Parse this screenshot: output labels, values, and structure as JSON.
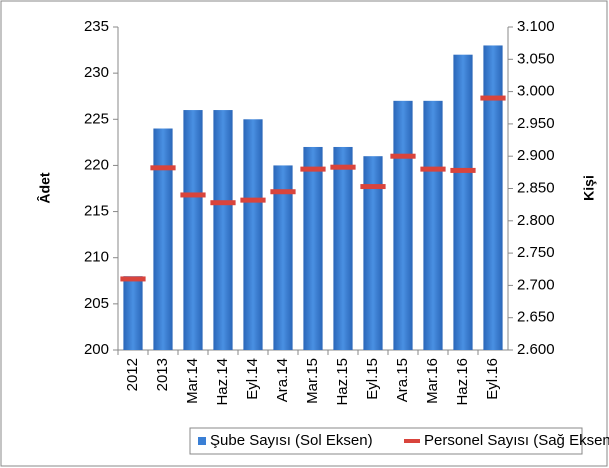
{
  "chart_data": {
    "type": "bar_dash",
    "categories": [
      "2012",
      "2013",
      "Mar.14",
      "Haz.14",
      "Eyl.14",
      "Ara.14",
      "Mar.15",
      "Haz.15",
      "Eyl.15",
      "Ara.15",
      "Mar.16",
      "Haz.16",
      "Eyl.16"
    ],
    "series": [
      {
        "name": "Şube Sayısı (Sol Eksen)",
        "color": "#3a7fd5",
        "values": [
          208,
          224,
          226,
          226,
          225,
          220,
          222,
          222,
          221,
          227,
          227,
          232,
          233
        ]
      },
      {
        "name": "Personel Sayısı (Sağ Eksen)",
        "color": "#d9443c",
        "axis": "y2",
        "values": [
          2710,
          2882,
          2840,
          2828,
          2832,
          2845,
          2880,
          2883,
          2853,
          2900,
          2880,
          2878,
          2990
        ]
      }
    ],
    "ylabel": "Âdet",
    "y2label": "Kişi",
    "ylim": [
      200,
      235
    ],
    "yticks": [
      200,
      205,
      210,
      215,
      220,
      225,
      230,
      235
    ],
    "y2lim": [
      2600,
      3100
    ],
    "y2ticks": [
      {
        "value": 2600,
        "label": "2.600"
      },
      {
        "value": 2650,
        "label": "2.650"
      },
      {
        "value": 2700,
        "label": "2.700"
      },
      {
        "value": 2750,
        "label": "2.750"
      },
      {
        "value": 2800,
        "label": "2.800"
      },
      {
        "value": 2850,
        "label": "2.850"
      },
      {
        "value": 2900,
        "label": "2.900"
      },
      {
        "value": 2950,
        "label": "2.950"
      },
      {
        "value": 3000,
        "label": "3.000"
      },
      {
        "value": 3050,
        "label": "3.050"
      },
      {
        "value": 3100,
        "label": "3.100"
      }
    ],
    "legend": "bottom"
  }
}
